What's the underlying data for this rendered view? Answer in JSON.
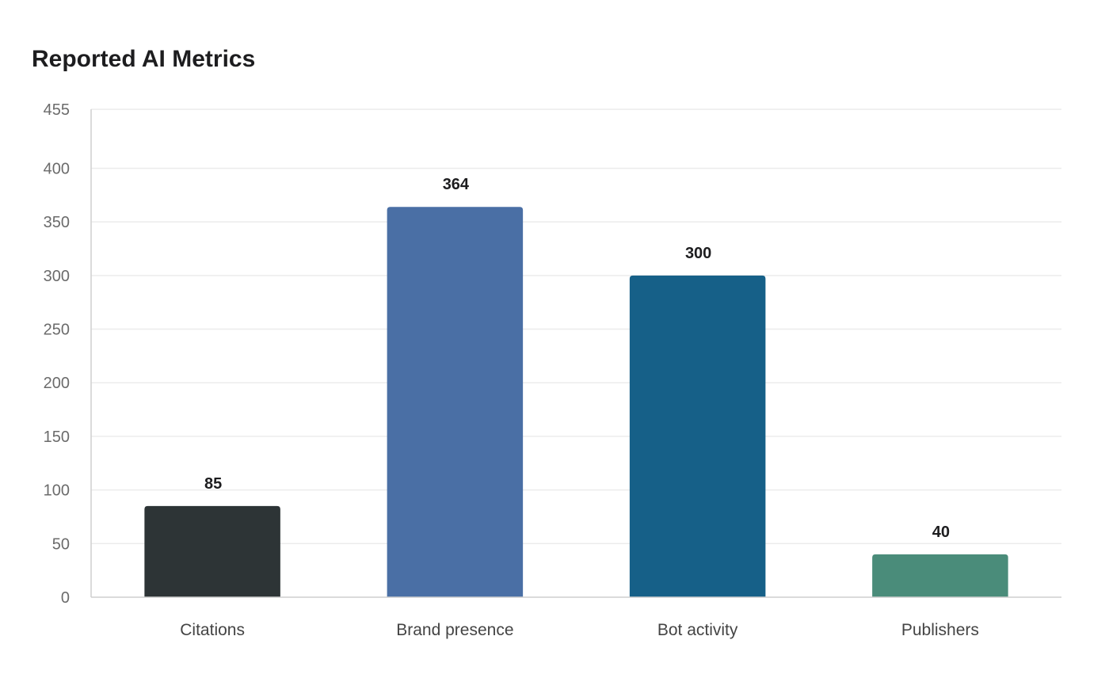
{
  "chart_data": {
    "type": "bar",
    "title": "Reported AI Metrics",
    "xlabel": "",
    "ylabel": "",
    "categories": [
      "Citations",
      "Brand presence",
      "Bot activity",
      "Publishers"
    ],
    "values": [
      85,
      364,
      300,
      40
    ],
    "data_labels": [
      "85",
      "364",
      "300",
      "40"
    ],
    "colors": [
      "#2d3436",
      "#4a6fa5",
      "#166088",
      "#4a8c7a"
    ],
    "ylim": [
      0,
      455
    ],
    "yticks": [
      0,
      50,
      100,
      150,
      200,
      250,
      300,
      350,
      400,
      455
    ],
    "grid": true,
    "legend": "none"
  }
}
